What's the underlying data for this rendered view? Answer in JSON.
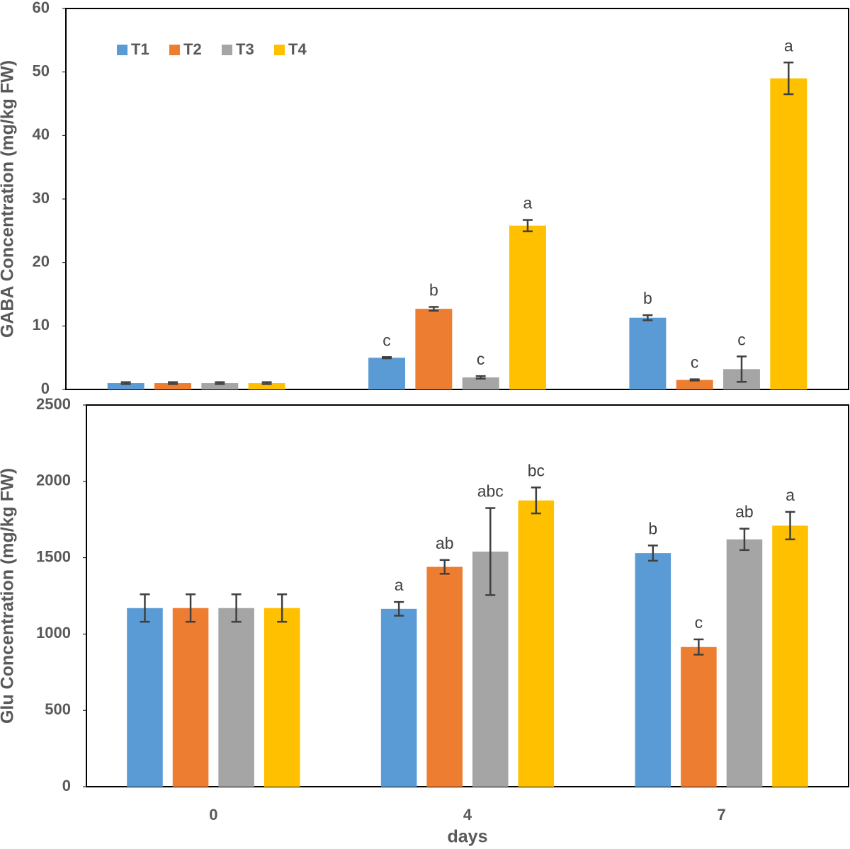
{
  "chart_data": [
    {
      "type": "bar",
      "ylabel": "GABA Concentration (mg/kg FW)",
      "ylim": [
        0,
        60
      ],
      "yticks": [
        0,
        10,
        20,
        30,
        40,
        50,
        60
      ],
      "grid": false,
      "legend": "upper left",
      "series": [
        {
          "name": "T1",
          "color": "#5b9bd5",
          "values": [
            1.0,
            5.0,
            11.3
          ],
          "errors": [
            0.15,
            0.1,
            0.4
          ],
          "labels": [
            null,
            "c",
            "b"
          ]
        },
        {
          "name": "T2",
          "color": "#ed7d31",
          "values": [
            1.0,
            12.7,
            1.5
          ],
          "errors": [
            0.15,
            0.3,
            0.1
          ],
          "labels": [
            null,
            "b",
            "c"
          ]
        },
        {
          "name": "T3",
          "color": "#a5a5a5",
          "values": [
            1.0,
            1.9,
            3.2
          ],
          "errors": [
            0.15,
            0.2,
            2.0
          ],
          "labels": [
            null,
            "c",
            "c"
          ]
        },
        {
          "name": "T4",
          "color": "#ffc000",
          "values": [
            1.0,
            25.8,
            49.0
          ],
          "errors": [
            0.15,
            0.9,
            2.5
          ],
          "labels": [
            null,
            "a",
            "a"
          ]
        }
      ]
    },
    {
      "type": "bar",
      "ylabel": "Glu Concentration (mg/kg FW)",
      "xlabel": "days",
      "categories": [
        "0",
        "4",
        "7"
      ],
      "ylim": [
        0,
        2500
      ],
      "yticks": [
        0,
        500,
        1000,
        1500,
        2000,
        2500
      ],
      "grid": false,
      "series": [
        {
          "color": "#5b9bd5",
          "values": [
            1170,
            1165,
            1530
          ],
          "errors": [
            90,
            45,
            50
          ],
          "labels": [
            null,
            "a",
            "b"
          ]
        },
        {
          "color": "#ed7d31",
          "values": [
            1170,
            1440,
            915
          ],
          "errors": [
            90,
            45,
            50
          ],
          "labels": [
            null,
            "ab",
            "c"
          ]
        },
        {
          "color": "#a5a5a5",
          "values": [
            1170,
            1540,
            1620
          ],
          "errors": [
            90,
            285,
            70
          ],
          "labels": [
            null,
            "abc",
            "ab"
          ]
        },
        {
          "color": "#ffc000",
          "values": [
            1170,
            1875,
            1710
          ],
          "errors": [
            90,
            85,
            90
          ],
          "labels": [
            null,
            "bc",
            "a"
          ]
        }
      ]
    }
  ]
}
